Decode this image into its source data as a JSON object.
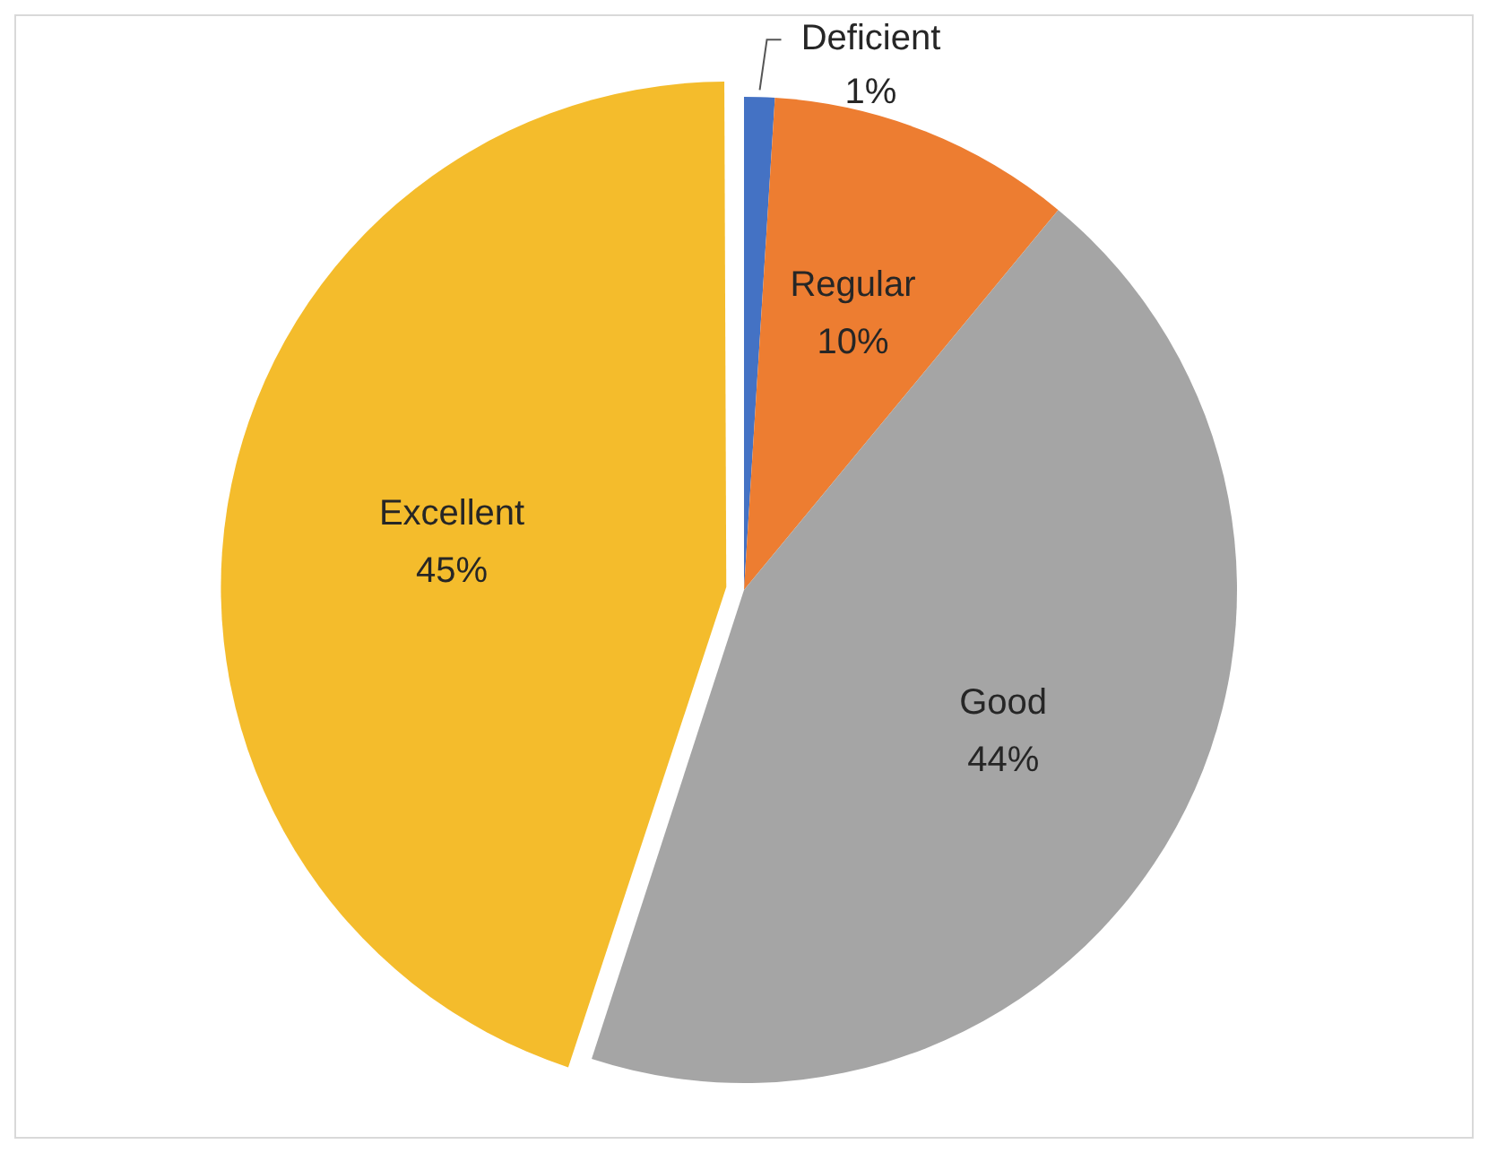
{
  "chart_data": {
    "type": "pie",
    "categories": [
      "Deficient",
      "Regular",
      "Good",
      "Excellent"
    ],
    "values": [
      1,
      10,
      44,
      45
    ],
    "colors": [
      "#4472c4",
      "#ed7d31",
      "#a5a5a5",
      "#f4bc2c"
    ],
    "value_labels": [
      "1%",
      "10%",
      "44%",
      "45%"
    ],
    "legend": false
  }
}
